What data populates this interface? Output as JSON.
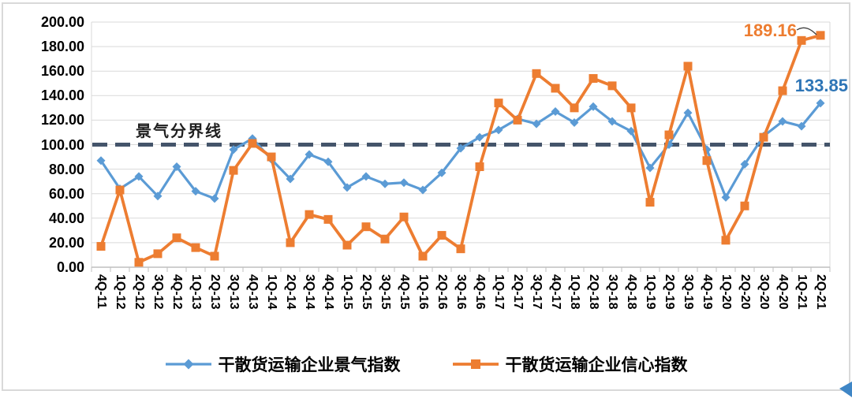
{
  "chart_data": {
    "type": "line",
    "title": "",
    "xlabel": "",
    "ylabel": "",
    "categories": [
      "4Q-11",
      "1Q-12",
      "2Q-12",
      "3Q-12",
      "4Q-12",
      "1Q-13",
      "2Q-13",
      "3Q-13",
      "4Q-13",
      "1Q-14",
      "2Q-14",
      "3Q-14",
      "4Q-14",
      "1Q-15",
      "2Q-15",
      "3Q-15",
      "4Q-15",
      "1Q-16",
      "2Q-16",
      "3Q-16",
      "4Q-16",
      "1Q-17",
      "2Q-17",
      "3Q-17",
      "4Q-17",
      "1Q-18",
      "2Q-18",
      "3Q-18",
      "4Q-18",
      "1Q-19",
      "2Q-19",
      "3Q-19",
      "4Q-19",
      "1Q-20",
      "2Q-20",
      "3Q-20",
      "4Q-20",
      "1Q-21",
      "2Q-21"
    ],
    "series": [
      {
        "name": "干散货运输企业景气指数",
        "color": "#5B9BD5",
        "marker": "diamond",
        "values": [
          87,
          64,
          74,
          58,
          82,
          62,
          56,
          96,
          105,
          88,
          72,
          92,
          86,
          65,
          74,
          68,
          69,
          63,
          77,
          97,
          106,
          112,
          121,
          117,
          127,
          118,
          131,
          119,
          111,
          81,
          100,
          126,
          96,
          57,
          84,
          107,
          119,
          115,
          133.85
        ]
      },
      {
        "name": "干散货运输企业信心指数",
        "color": "#ED7D31",
        "marker": "square",
        "values": [
          17,
          63,
          4,
          11,
          24,
          16,
          9,
          79,
          101,
          90,
          20,
          43,
          39,
          18,
          33,
          23,
          41,
          9,
          26,
          15,
          82,
          134,
          120,
          158,
          146,
          130,
          154,
          148,
          130,
          53,
          108,
          164,
          87,
          22,
          50,
          106,
          144,
          185,
          189.16
        ]
      }
    ],
    "ylim": [
      0,
      200
    ],
    "ytick_step": 20,
    "ytick_labels": [
      "0.00",
      "20.00",
      "40.00",
      "60.00",
      "80.00",
      "100.00",
      "120.00",
      "140.00",
      "160.00",
      "180.00",
      "200.00"
    ],
    "grid": "horizontal",
    "legend_position": "bottom",
    "threshold": {
      "value": 100,
      "label": "景气分界线",
      "style": "dashed"
    },
    "annotations": {
      "confidence_last": "189.16",
      "prosperity_last": "133.85"
    }
  },
  "colors": {
    "prosperity_line": "#5B9BD5",
    "confidence_line": "#ED7D31",
    "threshold_line": "#44546A",
    "gridline": "#D9D9D9",
    "axis": "#BFBFBF",
    "annotation_blue": "#2E75B6",
    "annotation_orange": "#ED7D31",
    "leader_line": "#404040",
    "cursor_artifact": "#3F86C6"
  }
}
